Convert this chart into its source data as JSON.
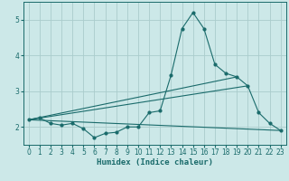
{
  "xlabel": "Humidex (Indice chaleur)",
  "xlim": [
    -0.5,
    23.5
  ],
  "ylim": [
    1.5,
    5.5
  ],
  "yticks": [
    2,
    3,
    4,
    5
  ],
  "xticks": [
    0,
    1,
    2,
    3,
    4,
    5,
    6,
    7,
    8,
    9,
    10,
    11,
    12,
    13,
    14,
    15,
    16,
    17,
    18,
    19,
    20,
    21,
    22,
    23
  ],
  "bg_color": "#cce8e8",
  "grid_color": "#aacccc",
  "line_color": "#1a6b6b",
  "line1_x": [
    0,
    1,
    2,
    3,
    4,
    5,
    6,
    7,
    8,
    9,
    10,
    11,
    12,
    13,
    14,
    15,
    16,
    17,
    18,
    19,
    20,
    21,
    22,
    23
  ],
  "line1_y": [
    2.2,
    2.25,
    2.1,
    2.05,
    2.1,
    1.95,
    1.7,
    1.82,
    1.85,
    2.0,
    2.0,
    2.4,
    2.45,
    3.45,
    4.75,
    5.2,
    4.75,
    3.75,
    3.5,
    3.4,
    3.15,
    2.4,
    2.1,
    1.9
  ],
  "line2_x": [
    0,
    23
  ],
  "line2_y": [
    2.2,
    1.9
  ],
  "line3_x": [
    0,
    20
  ],
  "line3_y": [
    2.2,
    3.15
  ],
  "line4_x": [
    0,
    19
  ],
  "line4_y": [
    2.2,
    3.4
  ],
  "tick_fontsize": 5.5,
  "xlabel_fontsize": 6.5
}
